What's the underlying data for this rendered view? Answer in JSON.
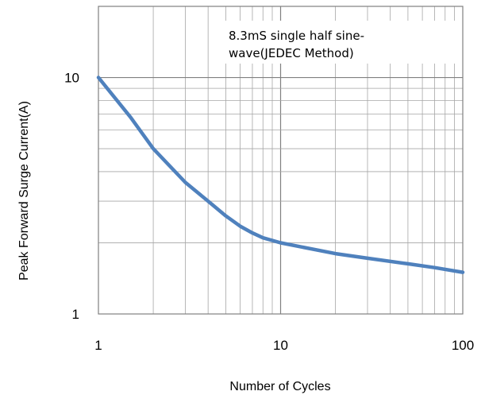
{
  "chart_data": {
    "type": "line",
    "x_scale": "log",
    "y_scale": "log",
    "xlim": [
      1,
      100
    ],
    "ylim": [
      1,
      20
    ],
    "xlabel": "Number of Cycles",
    "ylabel": "Peak Forward  Surge Current(A)",
    "x_tick_labels": [
      "1",
      "10",
      "100"
    ],
    "y_tick_labels": [
      "10",
      "1"
    ],
    "annotation": [
      "8.3mS  single half sine-",
      "wave(JEDEC Method)"
    ],
    "grid": true,
    "colors": {
      "series": "#4f81bd",
      "grid": "#a6a6a6",
      "axis": "#808080"
    },
    "series": [
      {
        "x": [
          1,
          1.5,
          2,
          3,
          4,
          5,
          6,
          7,
          8,
          10,
          20,
          30,
          50,
          70,
          100
        ],
        "y": [
          10,
          6.8,
          5.0,
          3.6,
          3.0,
          2.6,
          2.35,
          2.2,
          2.1,
          2.0,
          1.8,
          1.72,
          1.63,
          1.57,
          1.5
        ]
      }
    ]
  }
}
